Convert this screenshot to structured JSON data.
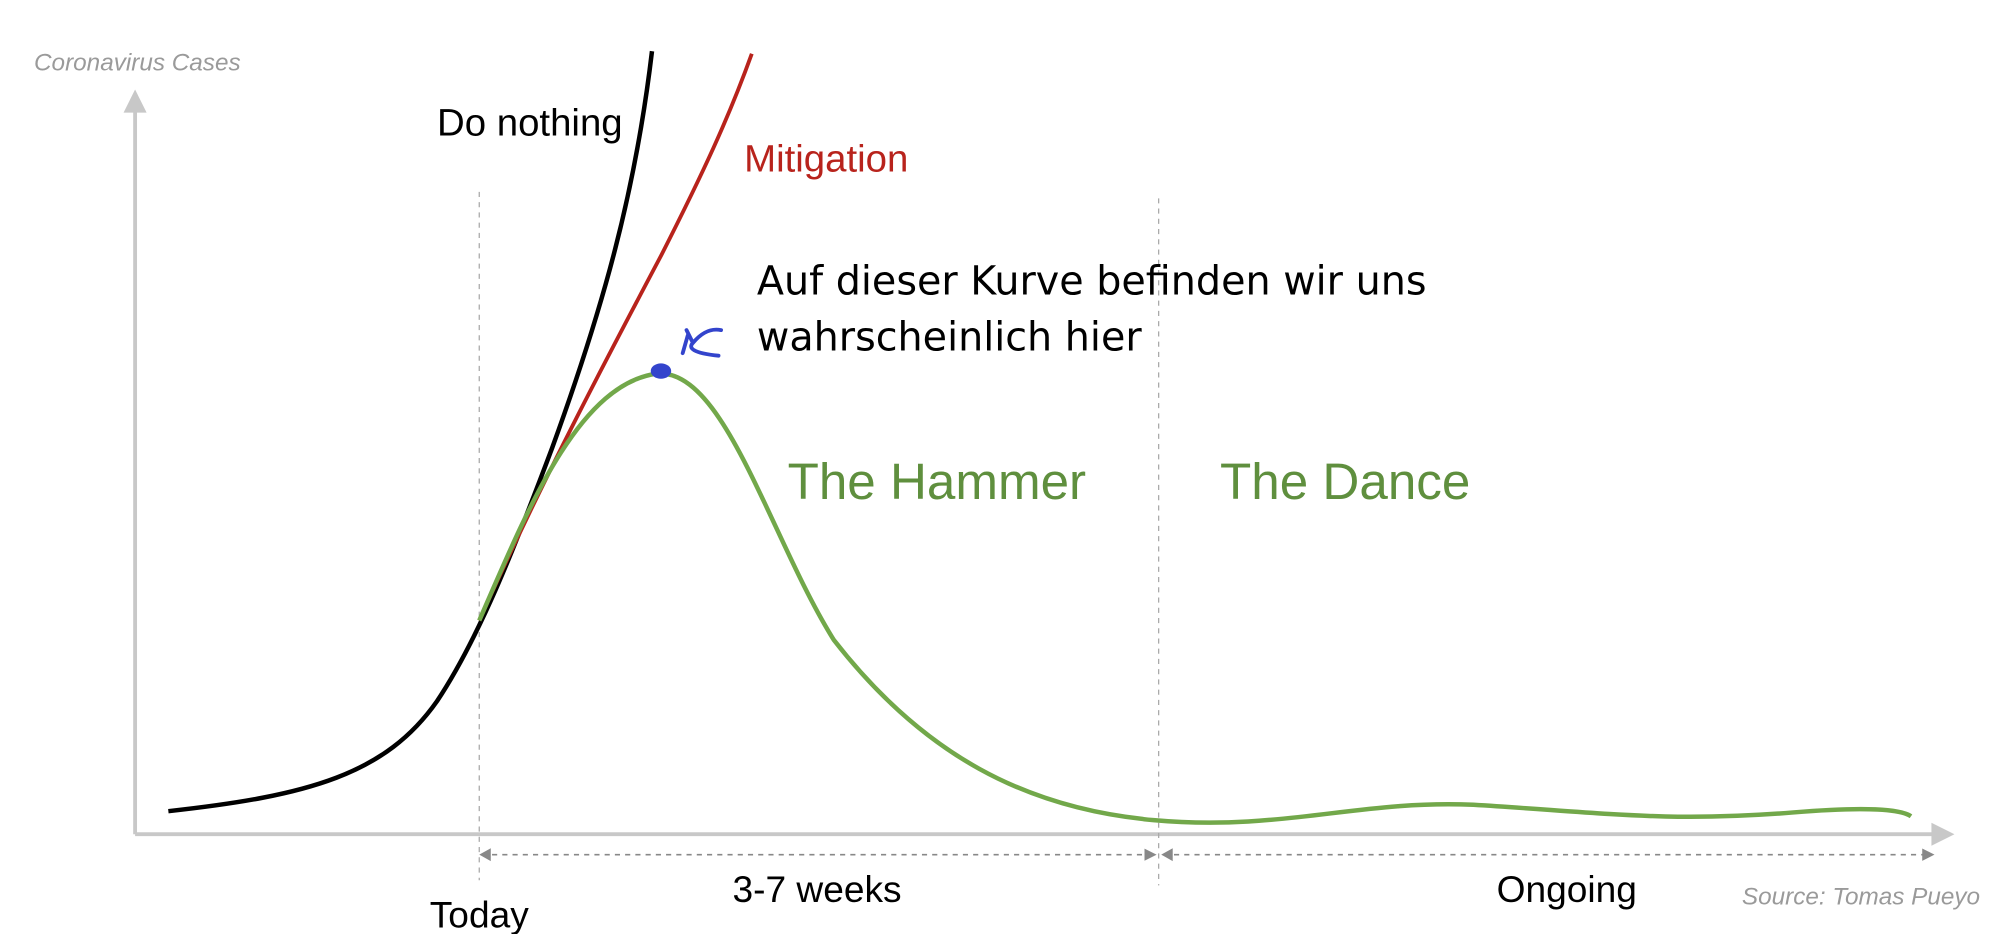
{
  "axis_label": "Coronavirus Cases",
  "curves": [
    {
      "label": "Do nothing"
    },
    {
      "label": "Mitigation"
    }
  ],
  "annotation": {
    "lines": [
      "Auf dieser Kurve befinden wir uns",
      "wahrscheinlich hier"
    ]
  },
  "phases": [
    {
      "label": "The Hammer"
    },
    {
      "label": "The Dance"
    }
  ],
  "timeline": {
    "start": "Today",
    "spans": [
      "3-7 weeks",
      "Ongoing"
    ]
  },
  "source": "Source: Tomas Pueyo"
}
